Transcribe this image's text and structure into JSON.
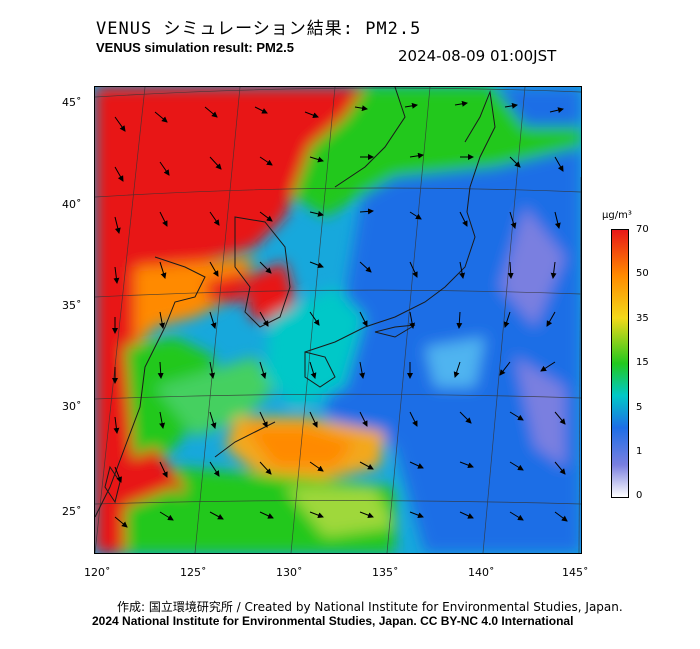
{
  "header": {
    "title_jp": "VENUS シミュレーション結果: PM2.5",
    "title_en": "VENUS simulation result: PM2.5",
    "timestamp": "2024-08-09 01:00JST"
  },
  "map": {
    "lat_labels": [
      "45˚",
      "40˚",
      "35˚",
      "30˚",
      "25˚"
    ],
    "lon_labels": [
      "120˚",
      "125˚",
      "130˚",
      "135˚",
      "140˚",
      "145˚"
    ]
  },
  "legend": {
    "unit": "μg/m³",
    "ticks": [
      "70",
      "50",
      "35",
      "15",
      "5",
      "1",
      "0"
    ],
    "colors": {
      "white": "#ffffff",
      "blue_purple": "#7a7fe0",
      "blue": "#1d6ee6",
      "cyan": "#00c8c8",
      "green": "#22c81e",
      "yellow": "#f3d91a",
      "orange": "#ff8a00",
      "red": "#e81818"
    }
  },
  "footer": {
    "credit_jp": "作成: 国立環境研究所 / Created by National Institute for Environmental Studies, Japan.",
    "credit_en": "2024 National Institute for Environmental Studies, Japan. CC BY-NC 4.0 International"
  }
}
